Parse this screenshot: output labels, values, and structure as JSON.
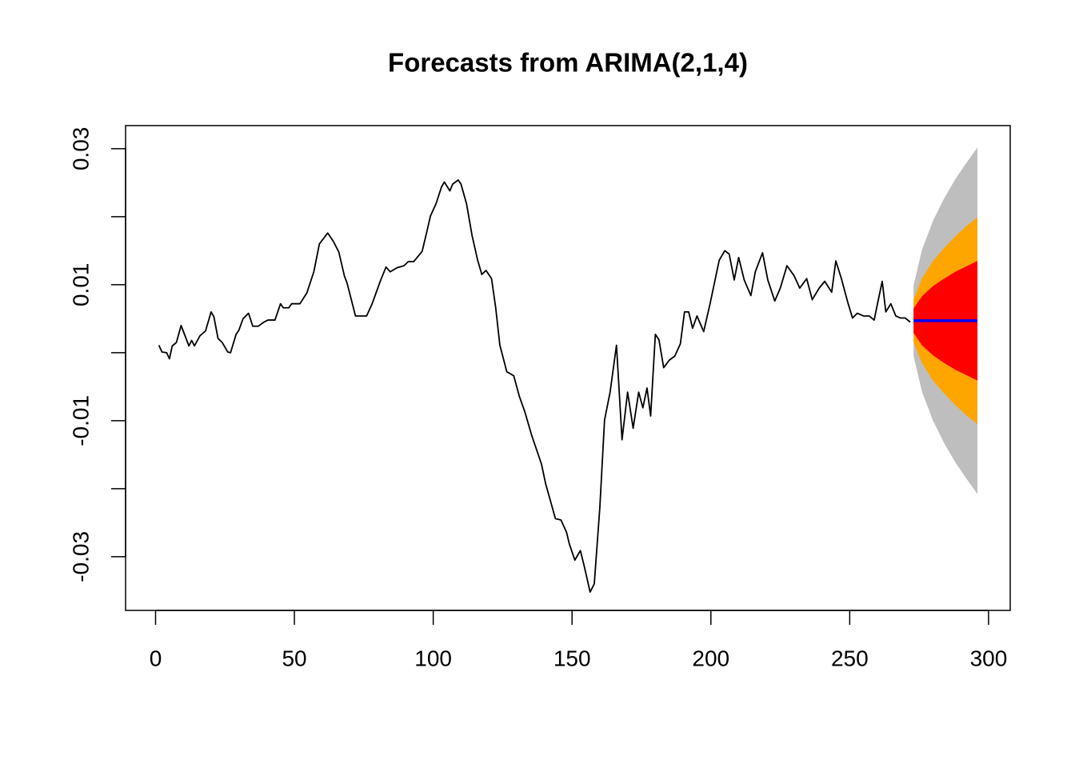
{
  "chart_data": {
    "type": "line",
    "title": "Forecasts from ARIMA(2,1,4)",
    "color": "#000000",
    "x": [
      1.2,
      2.3,
      4,
      5,
      6,
      7.5,
      9.2,
      12,
      13,
      14,
      16,
      18,
      20,
      21,
      22.5,
      24,
      26,
      27,
      29,
      30,
      31.5,
      33.5,
      35,
      37,
      39,
      40.5,
      43,
      45,
      46,
      48,
      49,
      52,
      54.5,
      57,
      59,
      62,
      64,
      66,
      68,
      69,
      72,
      76,
      78,
      81,
      83,
      84.5,
      87,
      89.5,
      91,
      93,
      95,
      96,
      97.7,
      99,
      101,
      103,
      104,
      106,
      107,
      109,
      110,
      112,
      114,
      116,
      117.5,
      119,
      121,
      122.5,
      124,
      126.5,
      129,
      131,
      133,
      135.5,
      139,
      140.5,
      142.5,
      144,
      146,
      148,
      149,
      151,
      153,
      154.5,
      156.5,
      158,
      160,
      161.7,
      163.7,
      166,
      168,
      170,
      172,
      174,
      175.5,
      177,
      178.3,
      180,
      181.3,
      183,
      185,
      187,
      189,
      190.5,
      192,
      193.4,
      195,
      197.4,
      199.7,
      201.5,
      203,
      205,
      206.6,
      208.4,
      210,
      212,
      214.4,
      216,
      218.6,
      220.5,
      223,
      225,
      227.4,
      230,
      232,
      234.5,
      236.5,
      239,
      241,
      243.5,
      245,
      247,
      249.3,
      251,
      252.7,
      255,
      257,
      258.8,
      260,
      261.7,
      263,
      264.8,
      266.6,
      268.3,
      270,
      271.8
    ],
    "values": [
      0.0011,
      0.0001,
      0,
      -0.0009,
      0.001,
      0.0015,
      0.004,
      0.001,
      0.0018,
      0.001,
      0.0025,
      0.0032,
      0.006,
      0.0053,
      0.0021,
      0.0015,
      0.0001,
      0,
      0.0027,
      0.0033,
      0.005,
      0.0058,
      0.0039,
      0.0039,
      0.0045,
      0.0048,
      0.0048,
      0.0072,
      0.0066,
      0.0066,
      0.0072,
      0.0072,
      0.0088,
      0.0119,
      0.016,
      0.0176,
      0.0164,
      0.0148,
      0.0113,
      0.0102,
      0.0054,
      0.0054,
      0.0072,
      0.0106,
      0.0126,
      0.0119,
      0.0125,
      0.0128,
      0.0134,
      0.0134,
      0.0144,
      0.0149,
      0.0178,
      0.0201,
      0.0219,
      0.0244,
      0.0251,
      0.0238,
      0.0248,
      0.0254,
      0.0248,
      0.0219,
      0.0172,
      0.0136,
      0.0115,
      0.0121,
      0.0109,
      0.0066,
      0.0011,
      -0.0028,
      -0.0034,
      -0.0064,
      -0.0087,
      -0.0122,
      -0.0164,
      -0.0193,
      -0.0222,
      -0.0244,
      -0.0246,
      -0.0264,
      -0.0281,
      -0.0305,
      -0.0291,
      -0.0316,
      -0.0352,
      -0.034,
      -0.0228,
      -0.0099,
      -0.0058,
      0.0011,
      -0.0128,
      -0.0058,
      -0.0111,
      -0.0058,
      -0.0081,
      -0.0052,
      -0.0093,
      0.0027,
      0.0019,
      -0.0022,
      -0.0011,
      -0.0005,
      0.0013,
      0.006,
      0.006,
      0.0036,
      0.0054,
      0.0031,
      0.0072,
      0.0107,
      0.0136,
      0.015,
      0.0145,
      0.0107,
      0.014,
      0.0107,
      0.0084,
      0.0119,
      0.0147,
      0.0107,
      0.0076,
      0.0095,
      0.0128,
      0.0113,
      0.0095,
      0.0109,
      0.0078,
      0.0095,
      0.0105,
      0.0089,
      0.0135,
      0.0109,
      0.0074,
      0.0051,
      0.0058,
      0.0054,
      0.0054,
      0.0048,
      0.0072,
      0.0105,
      0.006,
      0.0072,
      0.0054,
      0.0051,
      0.0051,
      0.0045
    ],
    "forecast": {
      "color": "#0000ff",
      "x": [
        273,
        276,
        280,
        284,
        288,
        292,
        296
      ],
      "values": [
        0.0047,
        0.0047,
        0.0047,
        0.0047,
        0.0047,
        0.0047,
        0.0047
      ]
    },
    "intervals": [
      {
        "color": "#bebebe",
        "upper": [
          0.0099,
          0.0151,
          0.0194,
          0.0227,
          0.0255,
          0.0279,
          0.0302
        ],
        "lower": [
          -0.0005,
          -0.0057,
          -0.01,
          -0.0133,
          -0.0161,
          -0.0185,
          -0.0208
        ]
      },
      {
        "color": "#ffa500",
        "upper": [
          0.0078,
          0.0109,
          0.0135,
          0.0154,
          0.0171,
          0.0186,
          0.0199
        ],
        "lower": [
          0.0016,
          -0.0015,
          -0.0041,
          -0.006,
          -0.0077,
          -0.0092,
          -0.0105
        ]
      },
      {
        "color": "#ff0000",
        "upper": [
          0.0065,
          0.0083,
          0.0098,
          0.0109,
          0.0119,
          0.0127,
          0.0135
        ],
        "lower": [
          0.0029,
          0.0011,
          -0.0004,
          -0.0015,
          -0.0025,
          -0.0033,
          -0.0041
        ]
      }
    ],
    "xlim": [
      -10.8,
      307.8
    ],
    "ylim": [
      -0.0379,
      0.0334
    ],
    "xticks": [
      0,
      50,
      100,
      150,
      200,
      250,
      300
    ],
    "yticks": [
      {
        "value": -0.03,
        "label": "-0.03"
      },
      {
        "value": -0.02,
        "label": null
      },
      {
        "value": -0.01,
        "label": "-0.01"
      },
      {
        "value": 0,
        "label": null
      },
      {
        "value": 0.01,
        "label": "0.01"
      },
      {
        "value": 0.02,
        "label": null
      },
      {
        "value": 0.03,
        "label": "0.03"
      }
    ]
  }
}
